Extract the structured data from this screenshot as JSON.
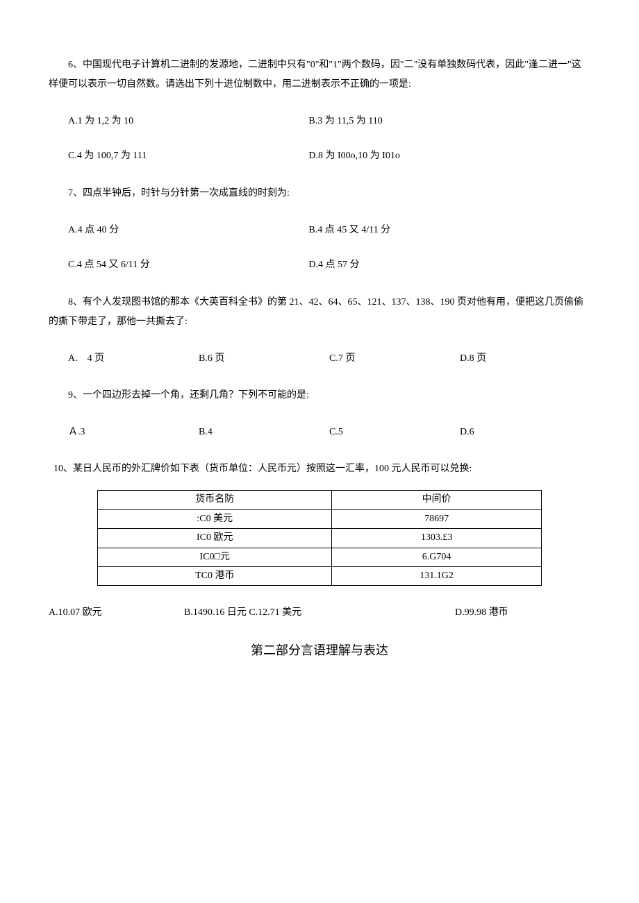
{
  "q6": {
    "text": "6、中国现代电子计算机二进制的发源地，二进制中只有\"0\"和\"1\"两个数码，因\"二\"没有单独数码代表，因此\"逢二进一\"这样便可以表示一切自然数。请选出下列十进位制数中，用二进制表示不正确的一项是:",
    "optA": "A.1 为 1,2 为 10",
    "optB": "B.3 为 11,5 为 110",
    "optC": "C.4 为 100,7 为 111",
    "optD": "D.8 为 I00o,10 为 I01o"
  },
  "q7": {
    "text": "7、四点半钟后，时针与分针第一次成直线的时刻为:",
    "optA": "A.4 点 40 分",
    "optB": "B.4 点 45 又 4/11 分",
    "optC": "C.4 点 54 又 6/11 分",
    "optD": "D.4 点 57 分"
  },
  "q8": {
    "text": "8、有个人发现图书馆的那本《大英百科全书》的第 21、42、64、65、121、137、138、190 页对他有用，便把这几页偷偷的撕下带走了，那他一共撕去了:",
    "optA": "A.　4 页",
    "optB": "B.6 页",
    "optC": "C.7 页",
    "optD": "D.8 页"
  },
  "q9": {
    "text": "9、一个四边形去掉一个角，还剩几角？下列不可能的是:",
    "optA": "Ａ.3",
    "optB": "B.4",
    "optC": "C.5",
    "optD": "D.6"
  },
  "q10": {
    "text": "10、某日人民币的外汇牌价如下表（货币单位：人民币元）按照这一汇率，100 元人民币可以兑换:",
    "table": {
      "headers": [
        "货币名防",
        "中间价"
      ],
      "rows": [
        [
          ":C0 美元",
          "78697"
        ],
        [
          "IC0 欧元",
          "1303.£3"
        ],
        [
          "IC0□元",
          "6.G704"
        ],
        [
          "TC0 港币",
          "131.1G2"
        ]
      ]
    },
    "optA": "A.10.07 欧元",
    "optBC": "B.1490.16 日元 C.12.71 美元",
    "optD": "D.99.98 港币"
  },
  "section2": {
    "title": "第二部分言语理解与表达"
  }
}
